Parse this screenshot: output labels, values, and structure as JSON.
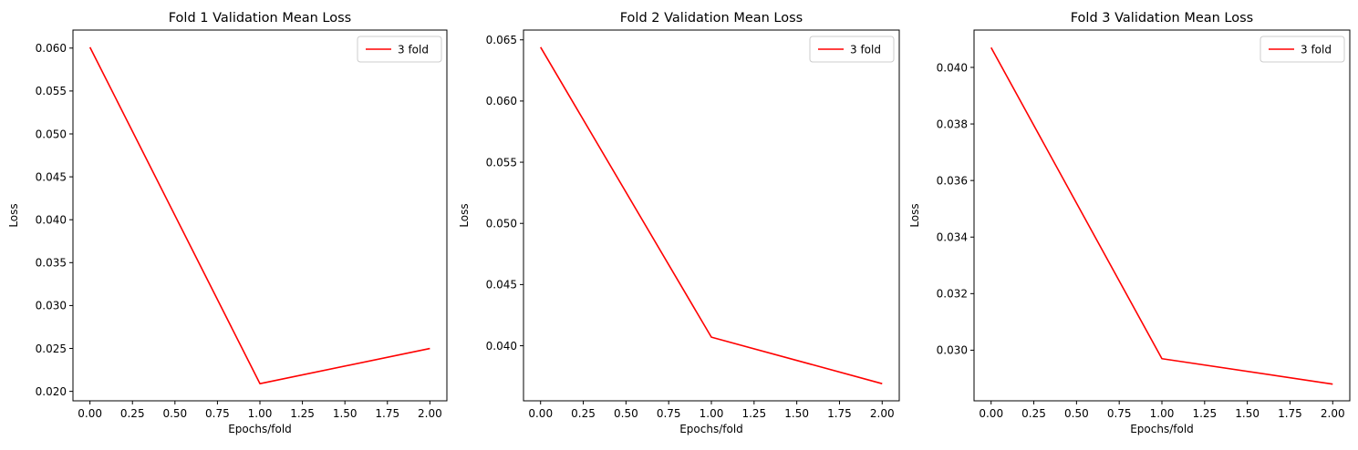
{
  "chart_data": [
    {
      "type": "line",
      "title": "Fold 1 Validation Mean Loss",
      "xlabel": "Epochs/fold",
      "ylabel": "Loss",
      "xlim": [
        -0.1,
        2.1
      ],
      "ylim": [
        0.0189,
        0.0621
      ],
      "xticks": [
        0.0,
        0.25,
        0.5,
        0.75,
        1.0,
        1.25,
        1.5,
        1.75,
        2.0
      ],
      "xtick_labels": [
        "0.00",
        "0.25",
        "0.50",
        "0.75",
        "1.00",
        "1.25",
        "1.50",
        "1.75",
        "2.00"
      ],
      "yticks": [
        0.02,
        0.025,
        0.03,
        0.035,
        0.04,
        0.045,
        0.05,
        0.055,
        0.06
      ],
      "ytick_labels": [
        "0.020",
        "0.025",
        "0.030",
        "0.035",
        "0.040",
        "0.045",
        "0.050",
        "0.055",
        "0.060"
      ],
      "grid": false,
      "legend": "upper right",
      "x": [
        0,
        1,
        2
      ],
      "series": [
        {
          "name": "3 fold",
          "color": "#ff0000",
          "values": [
            0.0601,
            0.0209,
            0.025
          ]
        }
      ]
    },
    {
      "type": "line",
      "title": "Fold 2 Validation Mean Loss",
      "xlabel": "Epochs/fold",
      "ylabel": "Loss",
      "xlim": [
        -0.1,
        2.1
      ],
      "ylim": [
        0.0355,
        0.0658
      ],
      "xticks": [
        0.0,
        0.25,
        0.5,
        0.75,
        1.0,
        1.25,
        1.5,
        1.75,
        2.0
      ],
      "xtick_labels": [
        "0.00",
        "0.25",
        "0.50",
        "0.75",
        "1.00",
        "1.25",
        "1.50",
        "1.75",
        "2.00"
      ],
      "yticks": [
        0.04,
        0.045,
        0.05,
        0.055,
        0.06,
        0.065
      ],
      "ytick_labels": [
        "0.040",
        "0.045",
        "0.050",
        "0.055",
        "0.060",
        "0.065"
      ],
      "grid": false,
      "legend": "upper right",
      "x": [
        0,
        1,
        2
      ],
      "series": [
        {
          "name": "3 fold",
          "color": "#ff0000",
          "values": [
            0.0644,
            0.0407,
            0.0369
          ]
        }
      ]
    },
    {
      "type": "line",
      "title": "Fold 3 Validation Mean Loss",
      "xlabel": "Epochs/fold",
      "ylabel": "Loss",
      "xlim": [
        -0.1,
        2.1
      ],
      "ylim": [
        0.02821,
        0.04132
      ],
      "xticks": [
        0.0,
        0.25,
        0.5,
        0.75,
        1.0,
        1.25,
        1.5,
        1.75,
        2.0
      ],
      "xtick_labels": [
        "0.00",
        "0.25",
        "0.50",
        "0.75",
        "1.00",
        "1.25",
        "1.50",
        "1.75",
        "2.00"
      ],
      "yticks": [
        0.03,
        0.032,
        0.034,
        0.036,
        0.038,
        0.04
      ],
      "ytick_labels": [
        "0.030",
        "0.032",
        "0.034",
        "0.036",
        "0.038",
        "0.040"
      ],
      "grid": false,
      "legend": "upper right",
      "x": [
        0,
        1,
        2
      ],
      "series": [
        {
          "name": "3 fold",
          "color": "#ff0000",
          "values": [
            0.0407,
            0.0297,
            0.0288
          ]
        }
      ]
    }
  ]
}
